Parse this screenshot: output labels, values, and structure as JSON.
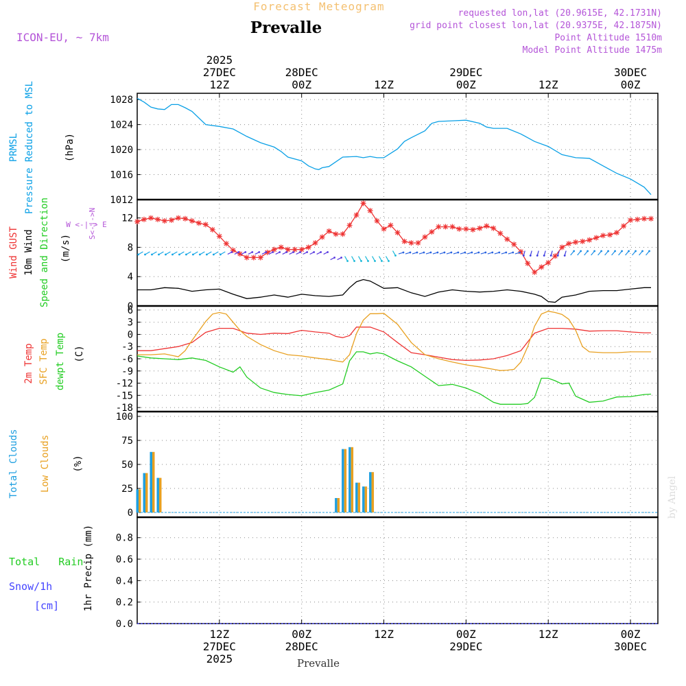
{
  "header": {
    "top_title": "Forecast Meteogram",
    "location": "Prevalle",
    "model": "ICON-EU, ~ 7km",
    "requested": "requested lon,lat (20.9615E, 42.1731N)",
    "grid_point": "grid point closest lon,lat (20.9375E, 42.1875N)",
    "point_altitude": "Point Altitude 1510m",
    "model_altitude": "Model Point Altitude 1475m",
    "watermark": "by Angel",
    "bottom_location": "Prevalle"
  },
  "time_axis": {
    "top": [
      {
        "t": 12,
        "lines": [
          "2025",
          "27DEC",
          "12Z"
        ]
      },
      {
        "t": 24,
        "lines": [
          "28DEC",
          "00Z"
        ]
      },
      {
        "t": 36,
        "lines": [
          "12Z"
        ]
      },
      {
        "t": 48,
        "lines": [
          "29DEC",
          "00Z"
        ]
      },
      {
        "t": 60,
        "lines": [
          "12Z"
        ]
      },
      {
        "t": 72,
        "lines": [
          "30DEC",
          "00Z"
        ]
      }
    ],
    "bottom": [
      {
        "t": 12,
        "lines": [
          "12Z",
          "27DEC",
          "2025"
        ]
      },
      {
        "t": 24,
        "lines": [
          "00Z",
          "28DEC"
        ]
      },
      {
        "t": 36,
        "lines": [
          "12Z"
        ]
      },
      {
        "t": 48,
        "lines": [
          "00Z",
          "29DEC"
        ]
      },
      {
        "t": 60,
        "lines": [
          "12Z"
        ]
      },
      {
        "t": 72,
        "lines": [
          "00Z",
          "30DEC"
        ]
      }
    ]
  },
  "colors": {
    "pressure": "#0aa0e6",
    "gust": "#ee3333",
    "wind": "#000000",
    "temp": "#ee3333",
    "sfc": "#e8a020",
    "dewpt": "#22cc22",
    "total_clouds": "#1e9fe0",
    "low_clouds": "#e8a020",
    "snow": "#4444ff",
    "purple": "#b455d8",
    "header_orange": "#f4c070",
    "grid": "#888888"
  },
  "labels": {
    "pressure": {
      "line1": "PRMSL",
      "line2": "Pressure Reduced to MSL",
      "unit": "(hPa)"
    },
    "wind": {
      "gust": "Wind GUST",
      "wind10": "10m Wind",
      "speed": "Speed and Direction",
      "unit": "(m/s)",
      "compass": [
        "W <-|-> E",
        "S<-|->N"
      ]
    },
    "temp": {
      "t2m": "2m Temp",
      "sfc": "SFC Temp",
      "dewpt": "dewpt Temp",
      "unit": "(C)"
    },
    "clouds": {
      "total": "Total Clouds",
      "low": "Low Clouds",
      "unit": "(%)"
    },
    "precip": {
      "rain": "Total   Rain",
      "snow": "Snow/1h",
      "snow_unit": "[cm]",
      "axis": "1hr Precip (mm)"
    }
  },
  "chart_data": [
    {
      "type": "line",
      "name": "pressure",
      "title": "PRMSL Pressure Reduced to MSL",
      "ylabel": "(hPa)",
      "ylim": [
        1012,
        1029
      ],
      "yticks": [
        1012,
        1016,
        1020,
        1024,
        1028
      ],
      "xlim": [
        0,
        76
      ],
      "series": [
        {
          "name": "PRMSL",
          "x": [
            0,
            1,
            2,
            3,
            4,
            5,
            6,
            7,
            8,
            10,
            12,
            14,
            16,
            18,
            20,
            21,
            22,
            24,
            25,
            26,
            26.5,
            27,
            28,
            30,
            32,
            33,
            34,
            35,
            36,
            38,
            39,
            40,
            42,
            43,
            44,
            46,
            48,
            50,
            51,
            52,
            54,
            56,
            58,
            60,
            62,
            64,
            66,
            68,
            70,
            72,
            74,
            75
          ],
          "y": [
            1028.2,
            1027.6,
            1026.8,
            1026.5,
            1026.4,
            1027.2,
            1027.2,
            1026.7,
            1026.1,
            1024,
            1023.7,
            1023.3,
            1022.1,
            1021.1,
            1020.4,
            1019.7,
            1018.8,
            1018.2,
            1017.4,
            1016.9,
            1016.8,
            1017.1,
            1017.3,
            1018.8,
            1018.9,
            1018.7,
            1018.9,
            1018.7,
            1018.7,
            1020.1,
            1021.3,
            1021.9,
            1023,
            1024.2,
            1024.5,
            1024.6,
            1024.7,
            1024.2,
            1023.6,
            1023.4,
            1023.4,
            1022.5,
            1021.3,
            1020.5,
            1019.2,
            1018.7,
            1018.6,
            1017.4,
            1016.2,
            1015.3,
            1014,
            1012.8
          ]
        }
      ]
    },
    {
      "type": "line",
      "name": "wind",
      "title": "Wind GUST / 10m Wind Speed and Direction",
      "ylabel": "(m/s)",
      "ylim": [
        0,
        14.5
      ],
      "yticks": [
        0,
        4,
        8,
        12
      ],
      "xlim": [
        0,
        76
      ],
      "series": [
        {
          "name": "Wind GUST",
          "x": [
            0,
            1,
            2,
            3,
            4,
            5,
            6,
            7,
            8,
            9,
            10,
            11,
            12,
            13,
            14,
            15,
            16,
            17,
            18,
            19,
            20,
            21,
            22,
            23,
            24,
            25,
            26,
            27,
            28,
            29,
            30,
            31,
            32,
            33,
            34,
            35,
            36,
            37,
            38,
            39,
            40,
            41,
            42,
            43,
            44,
            45,
            46,
            47,
            48,
            49,
            50,
            51,
            52,
            53,
            54,
            55,
            56,
            57,
            58,
            59,
            60,
            61,
            62,
            63,
            64,
            65,
            66,
            67,
            68,
            69,
            70,
            71,
            72,
            73,
            74,
            75
          ],
          "y": [
            11.5,
            11.8,
            12,
            11.8,
            11.6,
            11.7,
            12,
            11.9,
            11.6,
            11.3,
            11.1,
            10.4,
            9.5,
            8.5,
            7.6,
            7.1,
            6.6,
            6.6,
            6.6,
            7.3,
            7.7,
            8,
            7.7,
            7.7,
            7.7,
            8,
            8.6,
            9.4,
            10.2,
            9.8,
            9.8,
            11,
            12.4,
            14,
            13,
            11.6,
            10.5,
            11,
            10,
            8.8,
            8.6,
            8.6,
            9.4,
            10.1,
            10.8,
            10.8,
            10.8,
            10.5,
            10.5,
            10.4,
            10.6,
            10.9,
            10.6,
            9.9,
            9.1,
            8.4,
            7.4,
            5.8,
            4.6,
            5.3,
            5.9,
            6.8,
            8,
            8.5,
            8.7,
            8.8,
            9,
            9.3,
            9.6,
            9.7,
            10,
            10.9,
            11.7,
            11.8,
            11.9,
            11.9
          ]
        },
        {
          "name": "10m Wind",
          "x": [
            0,
            2,
            4,
            6,
            8,
            10,
            12,
            14,
            16,
            18,
            20,
            22,
            24,
            26,
            28,
            30,
            31,
            32,
            33,
            34,
            36,
            38,
            40,
            42,
            44,
            46,
            48,
            50,
            52,
            54,
            56,
            58,
            59,
            60,
            61,
            62,
            64,
            66,
            68,
            70,
            72,
            74,
            75
          ],
          "y": [
            2.2,
            2.2,
            2.5,
            2.4,
            2,
            2.2,
            2.3,
            1.6,
            1,
            1.2,
            1.5,
            1.2,
            1.6,
            1.4,
            1.3,
            1.5,
            2.5,
            3.3,
            3.6,
            3.4,
            2.4,
            2.5,
            1.8,
            1.3,
            1.9,
            2.2,
            2,
            1.9,
            2,
            2.2,
            2,
            1.6,
            1.3,
            0.6,
            0.5,
            1.2,
            1.5,
            2,
            2.1,
            2.1,
            2.3,
            2.5,
            2.5
          ]
        }
      ]
    },
    {
      "type": "line",
      "name": "temperature",
      "title": "2m Temp / SFC Temp / dewpt Temp",
      "ylabel": "(C)",
      "ylim": [
        -19,
        7
      ],
      "yticks": [
        -18,
        -15,
        -12,
        -9,
        -6,
        -3,
        0,
        3,
        6
      ],
      "xlim": [
        0,
        76
      ],
      "series": [
        {
          "name": "2m Temp",
          "x": [
            0,
            2,
            4,
            6,
            8,
            10,
            12,
            14,
            16,
            18,
            20,
            22,
            24,
            26,
            28,
            29,
            30,
            31,
            32,
            34,
            36,
            38,
            40,
            42,
            44,
            46,
            48,
            50,
            52,
            54,
            56,
            58,
            60,
            62,
            64,
            66,
            68,
            70,
            72,
            74,
            75
          ],
          "y": [
            -4,
            -4,
            -3.5,
            -3,
            -2,
            0.5,
            1.5,
            1.5,
            0.3,
            0,
            0.3,
            0.2,
            1,
            0.6,
            0.3,
            -0.5,
            -0.8,
            -0.3,
            1.8,
            1.8,
            0.6,
            -2,
            -4.5,
            -5,
            -5.6,
            -6.2,
            -6.4,
            -6.3,
            -6,
            -5.2,
            -4,
            0.3,
            1.5,
            1.5,
            1.3,
            0.8,
            0.9,
            0.9,
            0.6,
            0.4,
            0.4
          ]
        },
        {
          "name": "SFC Temp",
          "x": [
            0,
            2,
            4,
            6,
            7,
            8,
            10,
            11,
            12,
            13,
            14,
            15,
            16,
            18,
            20,
            22,
            24,
            26,
            28,
            29,
            30,
            31,
            32,
            33,
            34,
            35,
            36,
            38,
            40,
            42,
            44,
            46,
            48,
            50,
            52,
            53,
            54,
            55,
            56,
            57,
            58,
            59,
            60,
            61,
            62,
            63,
            64,
            65,
            66,
            68,
            70,
            72,
            74,
            75
          ],
          "y": [
            -5,
            -5,
            -4.8,
            -5.5,
            -4,
            -1.5,
            3.2,
            5,
            5.4,
            5,
            3,
            1,
            -0.5,
            -2.5,
            -4,
            -5,
            -5.3,
            -5.8,
            -6.2,
            -6.5,
            -6.8,
            -5,
            0.2,
            3.5,
            5.1,
            5.1,
            5.2,
            2.5,
            -2,
            -5,
            -6,
            -6.8,
            -7.5,
            -8,
            -8.6,
            -8.9,
            -8.8,
            -8.6,
            -6.8,
            -3,
            2,
            5,
            5.7,
            5.4,
            4.9,
            3.7,
            1,
            -3,
            -4.3,
            -4.5,
            -4.5,
            -4.3,
            -4.3,
            -4.3
          ]
        },
        {
          "name": "dewpt Temp",
          "x": [
            0,
            2,
            4,
            6,
            8,
            10,
            12,
            14,
            15,
            16,
            18,
            20,
            22,
            24,
            26,
            28,
            30,
            31,
            32,
            33,
            34,
            35,
            36,
            38,
            40,
            42,
            44,
            46,
            48,
            50,
            52,
            53,
            54,
            56,
            57,
            58,
            59,
            60,
            61,
            62,
            63,
            64,
            66,
            68,
            70,
            72,
            74,
            75
          ],
          "y": [
            -5.3,
            -5.8,
            -6,
            -6.2,
            -5.8,
            -6.4,
            -8,
            -9.3,
            -8,
            -10.5,
            -13.2,
            -14.3,
            -14.8,
            -15.1,
            -14.3,
            -13.7,
            -12.2,
            -6.5,
            -4.3,
            -4.3,
            -4.8,
            -4.5,
            -4.8,
            -6.5,
            -8,
            -10.3,
            -12.6,
            -12.3,
            -13.2,
            -14.6,
            -16.7,
            -17.2,
            -17.2,
            -17.2,
            -17,
            -15.5,
            -10.8,
            -10.8,
            -11.4,
            -12.2,
            -12,
            -15.2,
            -16.7,
            -16.4,
            -15.4,
            -15.3,
            -14.8,
            -14.7
          ]
        }
      ]
    },
    {
      "type": "bar",
      "name": "clouds",
      "title": "Total Clouds / Low Clouds",
      "ylabel": "(%)",
      "ylim": [
        -5,
        105
      ],
      "yticks": [
        0,
        25,
        50,
        75,
        100
      ],
      "xlim": [
        0,
        76
      ],
      "series": [
        {
          "name": "Total Clouds",
          "x": [
            0,
            1,
            2,
            3,
            29,
            30,
            31,
            32,
            33,
            34
          ],
          "y": [
            24,
            41,
            63,
            36,
            15,
            66,
            68,
            31,
            27,
            42
          ]
        },
        {
          "name": "Low Clouds",
          "x": [
            0,
            1,
            2,
            3,
            29,
            30,
            31,
            32,
            33,
            34
          ],
          "y": [
            24,
            41,
            63,
            36,
            15,
            66,
            68,
            31,
            27,
            42
          ]
        }
      ]
    },
    {
      "type": "bar",
      "name": "precip",
      "title": "1hr Precip",
      "ylabel": "1hr Precip (mm)",
      "ylim": [
        0,
        0.99
      ],
      "yticks": [
        0,
        0.2,
        0.4,
        0.6,
        0.8
      ],
      "xlim": [
        0,
        76
      ],
      "series": [
        {
          "name": "Total Rain",
          "x": [],
          "y": []
        },
        {
          "name": "Snow/1h",
          "x": [],
          "y": []
        }
      ]
    }
  ]
}
